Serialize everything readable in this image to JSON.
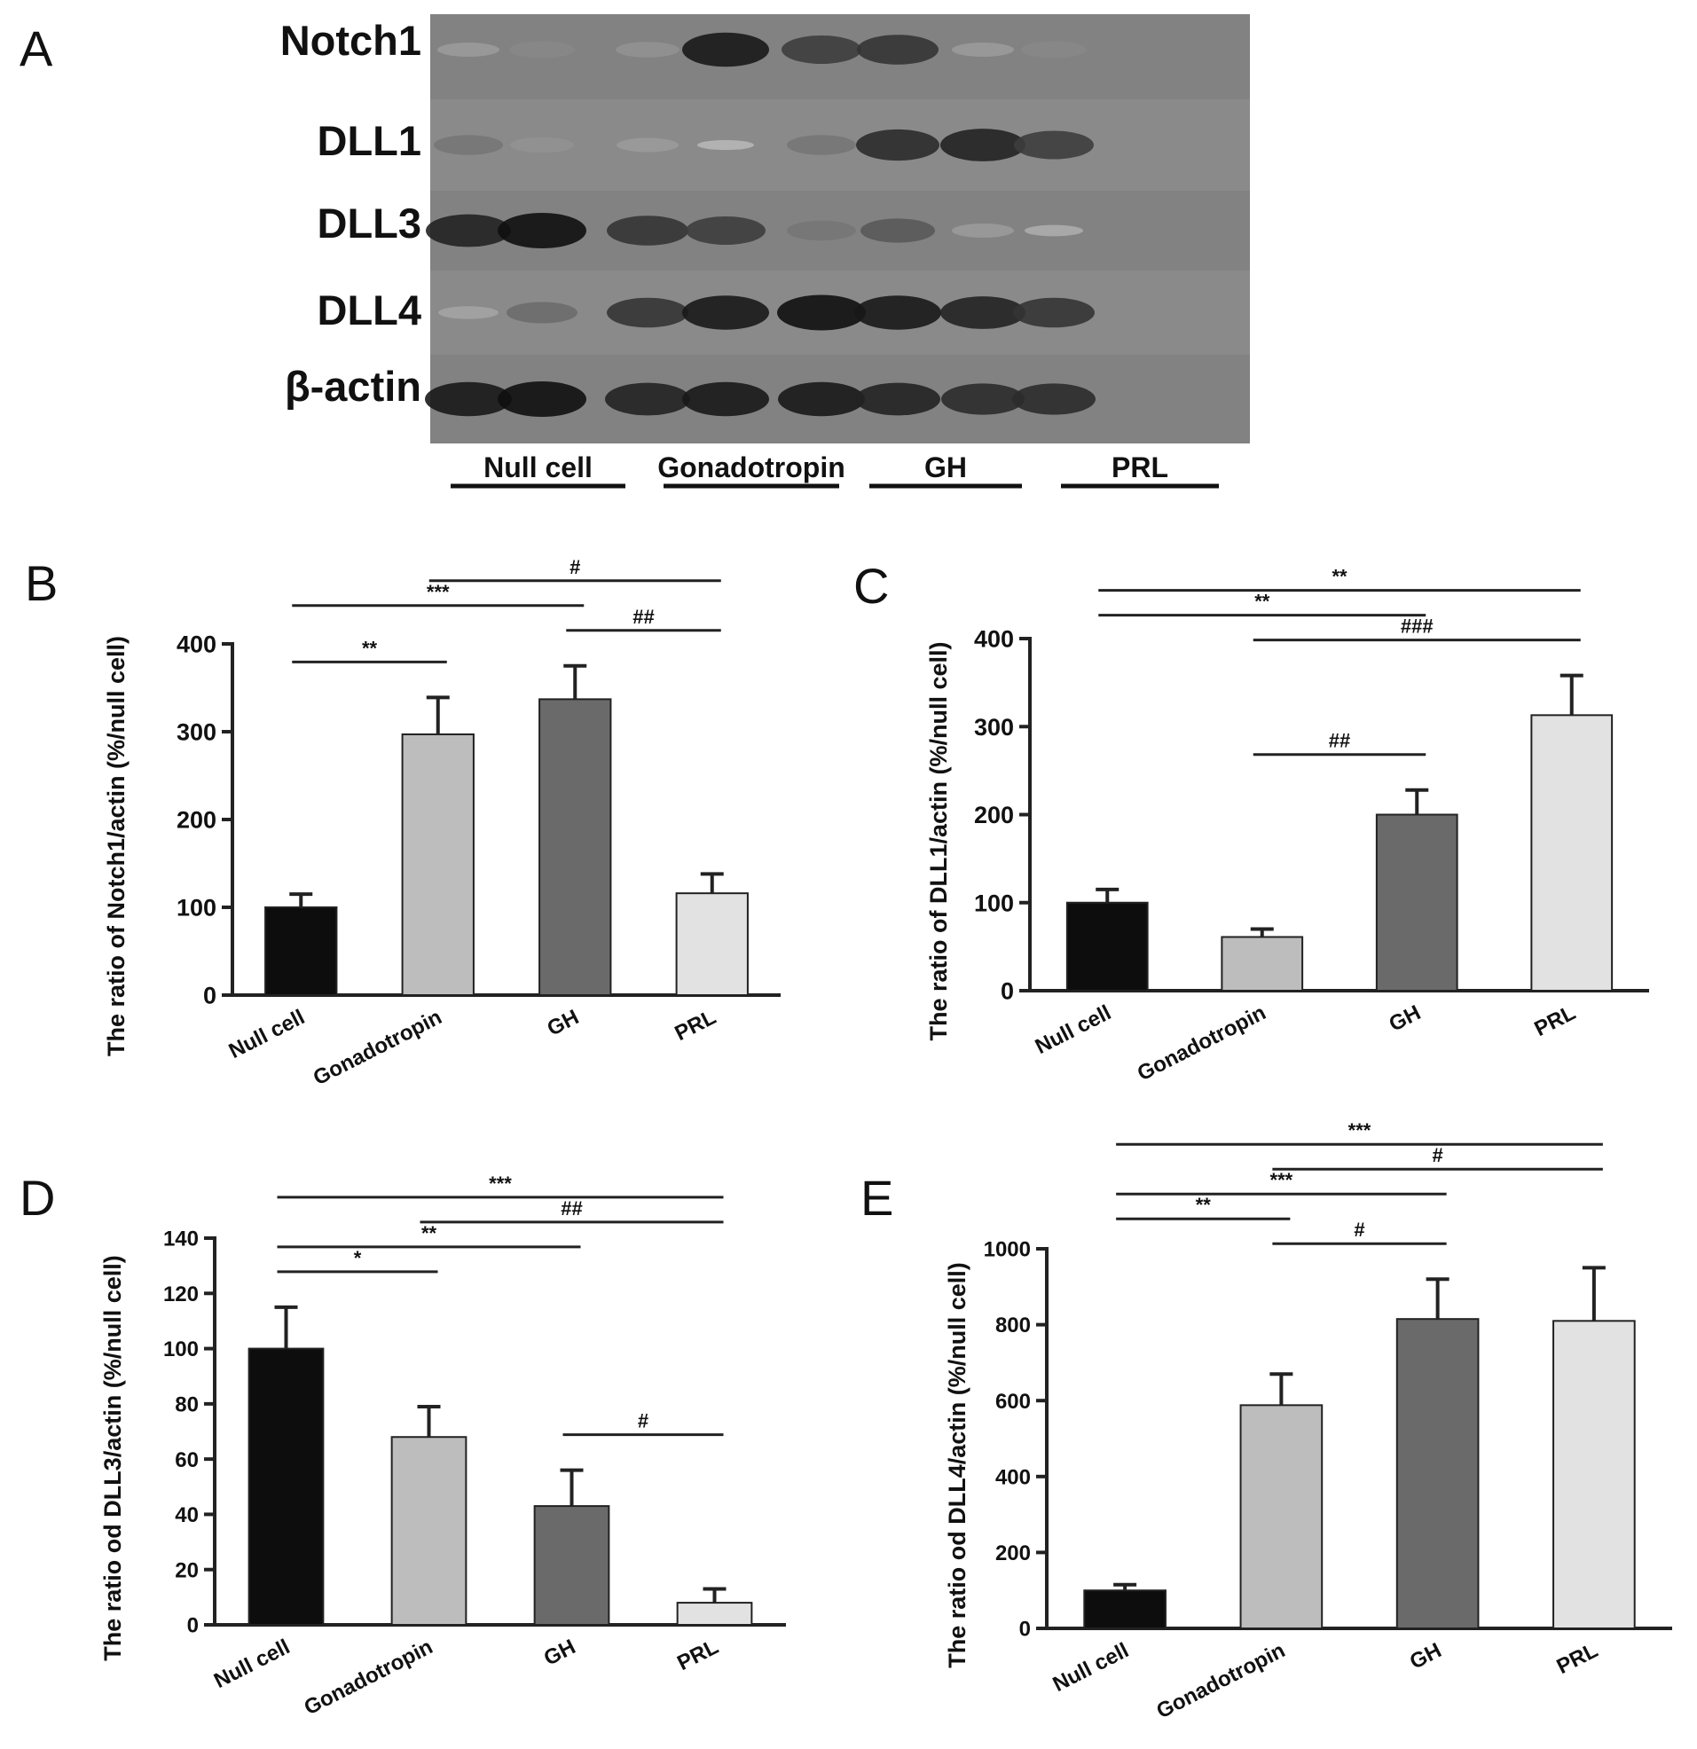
{
  "panel_letters": [
    "A",
    "B",
    "C",
    "D",
    "E"
  ],
  "blot": {
    "rows": [
      {
        "label": "Notch1",
        "bands": [
          0.25,
          0.35,
          0.3,
          0.95,
          0.75,
          0.8,
          0.25,
          0.35
        ]
      },
      {
        "label": "DLL1",
        "bands": [
          0.45,
          0.3,
          0.25,
          0.1,
          0.45,
          0.85,
          0.9,
          0.75
        ]
      },
      {
        "label": "DLL3",
        "bands": [
          0.9,
          1.0,
          0.8,
          0.75,
          0.45,
          0.6,
          0.25,
          0.15
        ]
      },
      {
        "label": "DLL4",
        "bands": [
          0.2,
          0.5,
          0.8,
          0.95,
          1.0,
          0.95,
          0.9,
          0.8
        ]
      },
      {
        "label": "β-actin",
        "bands": [
          0.95,
          1.0,
          0.9,
          0.95,
          0.95,
          0.9,
          0.85,
          0.85
        ]
      }
    ],
    "groups": [
      "Null cell",
      "Gonadotropin",
      "GH",
      "PRL"
    ]
  },
  "chart_data": [
    {
      "panel": "B",
      "type": "bar",
      "categories": [
        "Null cell",
        "Gonadotropin",
        "GH",
        "PRL"
      ],
      "values": [
        100,
        297,
        337,
        116
      ],
      "errors": [
        15,
        42,
        38,
        22
      ],
      "colors": [
        "#0d0d0d",
        "#bdbdbd",
        "#6a6a6a",
        "#e2e2e2"
      ],
      "ylabel": "The ratio of Notch1/actin (%/null cell)",
      "ylim": [
        0,
        400
      ],
      "yticks": [
        0,
        100,
        200,
        300,
        400
      ],
      "significance": [
        {
          "from": 0,
          "to": 1,
          "label": "**"
        },
        {
          "from": 0,
          "to": 2,
          "label": "***"
        },
        {
          "from": 1,
          "to": 3,
          "label": "#"
        },
        {
          "from": 2,
          "to": 3,
          "label": "##"
        }
      ]
    },
    {
      "panel": "C",
      "type": "bar",
      "categories": [
        "Null cell",
        "Gonadotropin",
        "GH",
        "PRL"
      ],
      "values": [
        100,
        61,
        200,
        313
      ],
      "errors": [
        15,
        9,
        28,
        45
      ],
      "colors": [
        "#0d0d0d",
        "#bdbdbd",
        "#6a6a6a",
        "#e2e2e2"
      ],
      "ylabel": "The ratio of DLL1/actin (%/null cell)",
      "ylim": [
        0,
        400
      ],
      "yticks": [
        0,
        100,
        200,
        300,
        400
      ],
      "significance": [
        {
          "from": 0,
          "to": 3,
          "label": "**"
        },
        {
          "from": 1,
          "to": 3,
          "label": "###"
        },
        {
          "from": 0,
          "to": 2,
          "label": "**"
        },
        {
          "from": 1,
          "to": 2,
          "label": "##"
        }
      ]
    },
    {
      "panel": "D",
      "type": "bar",
      "categories": [
        "Null cell",
        "Gonadotropin",
        "GH",
        "PRL"
      ],
      "values": [
        100,
        68,
        43,
        8
      ],
      "errors": [
        15,
        11,
        13,
        5
      ],
      "colors": [
        "#0d0d0d",
        "#bdbdbd",
        "#6a6a6a",
        "#e2e2e2"
      ],
      "ylabel": "The ratio od DLL3/actin (%/null cell)",
      "ylim": [
        0,
        140
      ],
      "yticks": [
        0,
        20,
        40,
        60,
        80,
        100,
        120,
        140
      ],
      "significance": [
        {
          "from": 0,
          "to": 3,
          "label": "***"
        },
        {
          "from": 0,
          "to": 2,
          "label": "**"
        },
        {
          "from": 0,
          "to": 1,
          "label": "*"
        },
        {
          "from": 1,
          "to": 3,
          "label": "##"
        },
        {
          "from": 2,
          "to": 3,
          "label": "#"
        }
      ]
    },
    {
      "panel": "E",
      "type": "bar",
      "categories": [
        "Null cell",
        "Gonadotropin",
        "GH",
        "PRL"
      ],
      "values": [
        100,
        588,
        815,
        810
      ],
      "errors": [
        15,
        82,
        105,
        140
      ],
      "colors": [
        "#0d0d0d",
        "#bdbdbd",
        "#6a6a6a",
        "#e2e2e2"
      ],
      "ylabel": "The ratio od DLL4/actin (%/null cell)",
      "ylim": [
        0,
        1000
      ],
      "yticks": [
        0,
        200,
        400,
        600,
        800,
        1000
      ],
      "significance": [
        {
          "from": 0,
          "to": 3,
          "label": "***"
        },
        {
          "from": 0,
          "to": 2,
          "label": "***"
        },
        {
          "from": 1,
          "to": 3,
          "label": "#"
        },
        {
          "from": 1,
          "to": 2,
          "label": "#"
        },
        {
          "from": 0,
          "to": 1,
          "label": "**"
        }
      ]
    }
  ]
}
